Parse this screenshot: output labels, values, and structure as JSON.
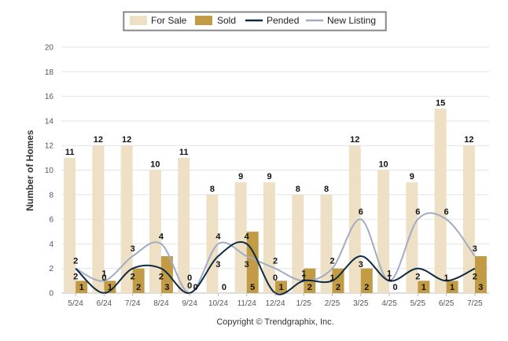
{
  "chart_data": {
    "type": "bar",
    "categories": [
      "5/24",
      "6/24",
      "7/24",
      "8/24",
      "9/24",
      "10/24",
      "11/24",
      "12/24",
      "1/25",
      "2/25",
      "3/25",
      "4/25",
      "5/25",
      "6/25",
      "7/25"
    ],
    "ylabel": "Number of Homes",
    "ylim": [
      0,
      20
    ],
    "yticks": [
      0,
      2,
      4,
      6,
      8,
      10,
      12,
      14,
      16,
      18,
      20
    ],
    "grid": true,
    "legend_position": "top-center",
    "series": [
      {
        "name": "For Sale",
        "type": "bar",
        "color": "#eee0c4",
        "values": [
          11,
          12,
          12,
          10,
          11,
          8,
          9,
          9,
          8,
          8,
          12,
          10,
          9,
          15,
          12
        ]
      },
      {
        "name": "Sold",
        "type": "bar",
        "color": "#c19b45",
        "values": [
          1,
          1,
          2,
          3,
          0,
          0,
          5,
          1,
          2,
          2,
          2,
          0,
          1,
          1,
          3
        ]
      },
      {
        "name": "Pended",
        "type": "line",
        "color": "#0f2a44",
        "values": [
          2,
          0,
          2,
          2,
          0,
          3,
          4,
          0,
          1,
          1,
          3,
          1,
          2,
          1,
          2
        ]
      },
      {
        "name": "New Listing",
        "type": "line",
        "color": "#a2acc4",
        "values": [
          2,
          1,
          3,
          4,
          0,
          4,
          3,
          2,
          1,
          2,
          6,
          1,
          6,
          6,
          3
        ]
      }
    ]
  },
  "footer": {
    "copyright": "Copyright © Trendgraphix, Inc."
  }
}
